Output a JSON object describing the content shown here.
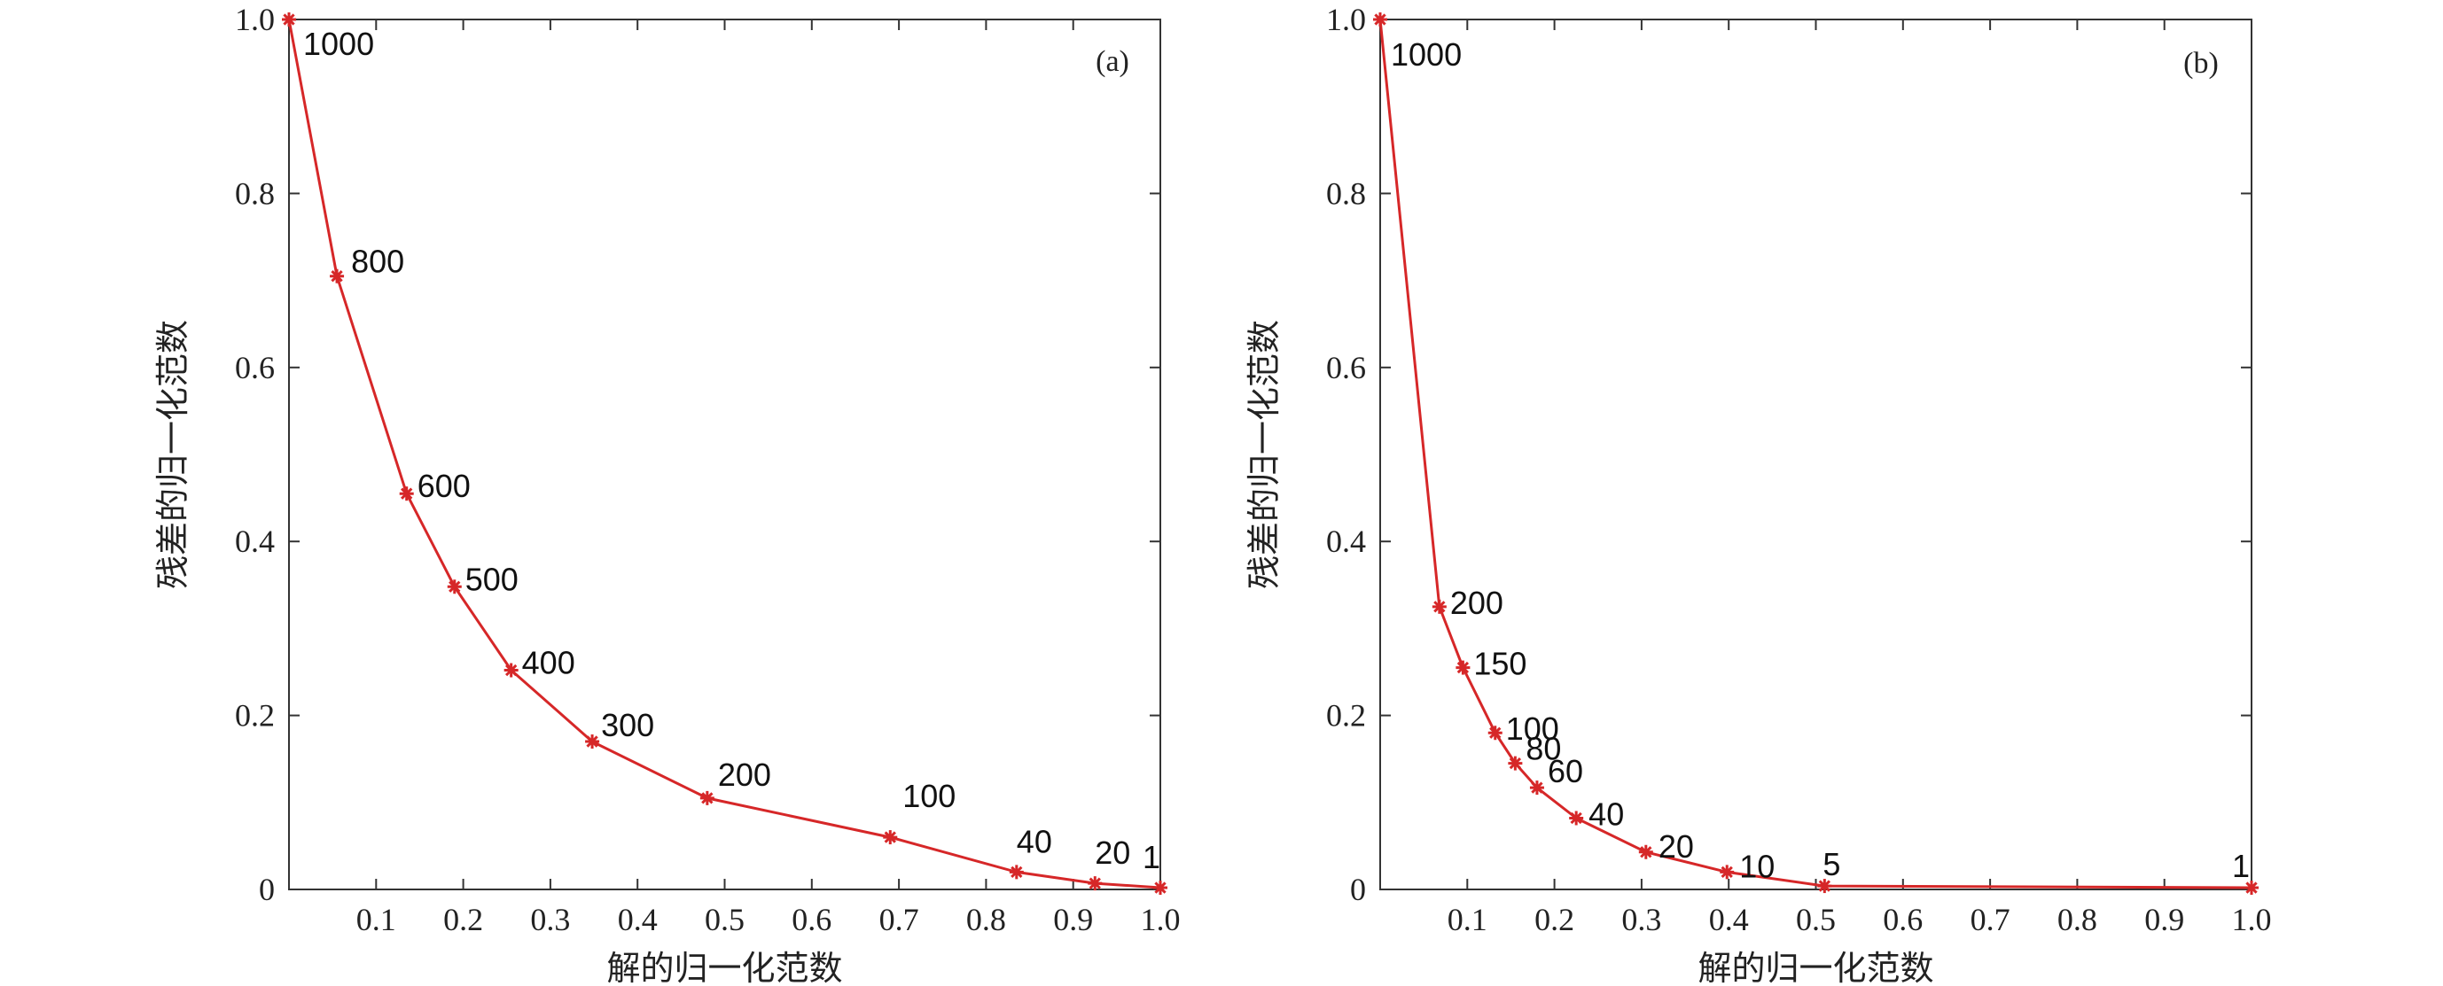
{
  "chart_data": [
    {
      "type": "line",
      "panel": "(a)",
      "xlabel": "解的归一化范数",
      "ylabel": "残差的归一化范数",
      "xlim": [
        0,
        1.0
      ],
      "ylim": [
        0,
        1.0
      ],
      "x_ticks": [
        "0.1",
        "0.2",
        "0.3",
        "0.4",
        "0.5",
        "0.6",
        "0.7",
        "0.8",
        "0.9",
        "1.0"
      ],
      "y_ticks": [
        "0",
        "0.2",
        "0.4",
        "0.6",
        "0.8",
        "1.0"
      ],
      "color": "#d62728",
      "marker": "asterisk",
      "points": [
        {
          "x": 0.0,
          "y": 1.0,
          "label": "1000"
        },
        {
          "x": 0.055,
          "y": 0.705,
          "label": "800"
        },
        {
          "x": 0.135,
          "y": 0.455,
          "label": "600"
        },
        {
          "x": 0.19,
          "y": 0.348,
          "label": "500"
        },
        {
          "x": 0.255,
          "y": 0.252,
          "label": "400"
        },
        {
          "x": 0.348,
          "y": 0.17,
          "label": "300"
        },
        {
          "x": 0.48,
          "y": 0.105,
          "label": "200"
        },
        {
          "x": 0.69,
          "y": 0.06,
          "label": "100"
        },
        {
          "x": 0.835,
          "y": 0.02,
          "label": "40"
        },
        {
          "x": 0.925,
          "y": 0.007,
          "label": "20"
        },
        {
          "x": 1.0,
          "y": 0.002,
          "label": "1"
        }
      ]
    },
    {
      "type": "line",
      "panel": "(b)",
      "xlabel": "解的归一化范数",
      "ylabel": "残差的归一化范数",
      "xlim": [
        0,
        1.0
      ],
      "ylim": [
        0,
        1.0
      ],
      "x_ticks": [
        "0.1",
        "0.2",
        "0.3",
        "0.4",
        "0.5",
        "0.6",
        "0.7",
        "0.8",
        "0.9",
        "1.0"
      ],
      "y_ticks": [
        "0",
        "0.2",
        "0.4",
        "0.6",
        "0.8",
        "1.0"
      ],
      "color": "#d62728",
      "marker": "asterisk",
      "points": [
        {
          "x": 0.0,
          "y": 1.0,
          "label": "1000"
        },
        {
          "x": 0.068,
          "y": 0.325,
          "label": "200"
        },
        {
          "x": 0.095,
          "y": 0.255,
          "label": "150"
        },
        {
          "x": 0.132,
          "y": 0.18,
          "label": "100"
        },
        {
          "x": 0.155,
          "y": 0.145,
          "label": "80"
        },
        {
          "x": 0.18,
          "y": 0.117,
          "label": "60"
        },
        {
          "x": 0.225,
          "y": 0.082,
          "label": "40"
        },
        {
          "x": 0.305,
          "y": 0.043,
          "label": "20"
        },
        {
          "x": 0.398,
          "y": 0.02,
          "label": "10"
        },
        {
          "x": 0.51,
          "y": 0.004,
          "label": "5"
        },
        {
          "x": 1.0,
          "y": 0.002,
          "label": "1"
        }
      ]
    }
  ]
}
